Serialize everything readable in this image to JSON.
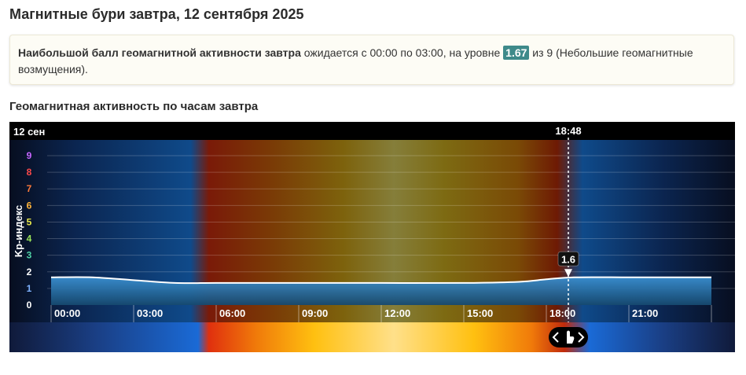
{
  "page": {
    "title": "Магнитные бури завтра, 12 сентября 2025",
    "info": {
      "bold_text": "Наибольшой балл геомагнитной активности завтра",
      "text_before_value": " ожидается с 00:00 по 03:00, на уровне ",
      "value": "1.67",
      "text_after_value": " из 9 (Небольшие геомагнитные возмущения)."
    },
    "chart_title": "Геомагнитная активность по часам завтра"
  },
  "chart_data": {
    "type": "area",
    "date_label": "12 сен",
    "ylabel": "Kp-индекс",
    "ylim": [
      0,
      9
    ],
    "y_ticks": [
      "0",
      "1",
      "2",
      "3",
      "4",
      "5",
      "6",
      "7",
      "8",
      "9"
    ],
    "y_tick_colors": [
      "#ffffff",
      "#7fb2ff",
      "#ffffff",
      "#4fd1a5",
      "#9be55a",
      "#e8e84a",
      "#ffb43a",
      "#ff7a3a",
      "#ff4a4a",
      "#c866ff"
    ],
    "x_ticks": [
      "00:00",
      "03:00",
      "06:00",
      "09:00",
      "12:00",
      "15:00",
      "18:00",
      "21:00"
    ],
    "x_range_hours": [
      0,
      24
    ],
    "x_hours": [
      0,
      1.5,
      3,
      4.5,
      6,
      9,
      12,
      15,
      17,
      18,
      19,
      21,
      22.5,
      24
    ],
    "kp_values": [
      1.67,
      1.67,
      1.5,
      1.33,
      1.33,
      1.33,
      1.33,
      1.33,
      1.4,
      1.55,
      1.67,
      1.67,
      1.67,
      1.67
    ],
    "cursor": {
      "time": "18:48",
      "hour": 18.8,
      "value": "1.6"
    },
    "area_color": "#2a7fbd",
    "line_color": "#ffffff"
  }
}
